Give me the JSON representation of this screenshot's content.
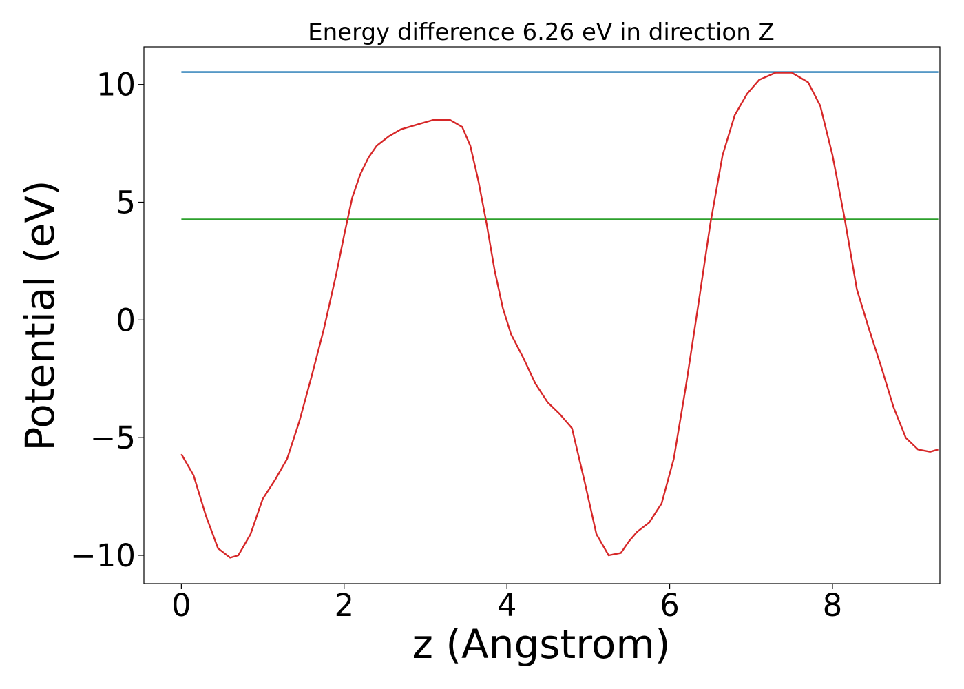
{
  "chart_data": {
    "type": "line",
    "title": "Energy difference 6.26 eV in direction Z",
    "xlabel": "z (Angstrom)",
    "ylabel": "Potential (eV)",
    "xlim": [
      -0.46,
      9.32
    ],
    "ylim": [
      -11.2,
      11.6
    ],
    "x_ticks": [
      0,
      2,
      4,
      6,
      8
    ],
    "x_tick_labels": [
      "0",
      "2",
      "4",
      "6",
      "8"
    ],
    "y_ticks": [
      -10,
      -5,
      0,
      5,
      10
    ],
    "y_tick_labels": [
      "−10",
      "−5",
      "0",
      "5",
      "10"
    ],
    "grid": false,
    "series": [
      {
        "color": "#1f77b4",
        "x": [
          0,
          9.3
        ],
        "y": [
          10.53,
          10.53
        ]
      },
      {
        "color": "#2ca02c",
        "x": [
          0,
          9.3
        ],
        "y": [
          4.27,
          4.27
        ]
      },
      {
        "color": "#d62728",
        "x": [
          0.0,
          0.15,
          0.3,
          0.45,
          0.6,
          0.7,
          0.85,
          1.0,
          1.15,
          1.3,
          1.45,
          1.6,
          1.75,
          1.9,
          2.0,
          2.1,
          2.2,
          2.3,
          2.4,
          2.55,
          2.7,
          2.9,
          3.1,
          3.3,
          3.45,
          3.55,
          3.65,
          3.75,
          3.85,
          3.95,
          4.05,
          4.2,
          4.35,
          4.5,
          4.65,
          4.8,
          4.95,
          5.1,
          5.25,
          5.4,
          5.5,
          5.6,
          5.75,
          5.9,
          6.05,
          6.2,
          6.35,
          6.5,
          6.65,
          6.8,
          6.95,
          7.1,
          7.3,
          7.5,
          7.7,
          7.85,
          8.0,
          8.15,
          8.3,
          8.45,
          8.6,
          8.75,
          8.9,
          9.05,
          9.2,
          9.3
        ],
        "y": [
          -5.7,
          -6.6,
          -8.3,
          -9.7,
          -10.1,
          -10.0,
          -9.1,
          -7.6,
          -6.8,
          -5.9,
          -4.3,
          -2.4,
          -0.4,
          1.9,
          3.6,
          5.2,
          6.2,
          6.9,
          7.4,
          7.8,
          8.1,
          8.3,
          8.5,
          8.5,
          8.2,
          7.4,
          5.9,
          4.1,
          2.1,
          0.5,
          -0.6,
          -1.6,
          -2.7,
          -3.5,
          -4.0,
          -4.6,
          -6.8,
          -9.1,
          -10.0,
          -9.9,
          -9.4,
          -9.0,
          -8.6,
          -7.8,
          -5.9,
          -2.8,
          0.6,
          4.1,
          7.0,
          8.7,
          9.6,
          10.2,
          10.5,
          10.5,
          10.1,
          9.1,
          7.0,
          4.3,
          1.3,
          -0.4,
          -2.0,
          -3.7,
          -5.0,
          -5.5,
          -5.6,
          -5.5
        ]
      }
    ]
  }
}
